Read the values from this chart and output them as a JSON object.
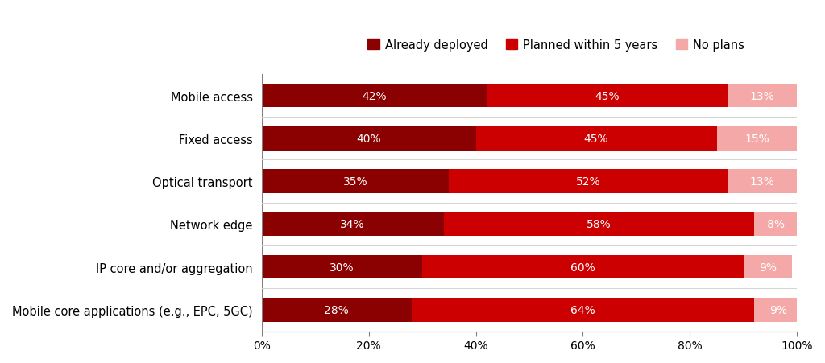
{
  "categories": [
    "Mobile access",
    "Fixed access",
    "Optical transport",
    "Network edge",
    "IP core and/or aggregation",
    "Mobile core applications (e.g., EPC, 5GC)"
  ],
  "already_deployed": [
    42,
    40,
    35,
    34,
    30,
    28
  ],
  "planned_within_5years": [
    45,
    45,
    52,
    58,
    60,
    64
  ],
  "no_plans": [
    13,
    15,
    13,
    8,
    9,
    9
  ],
  "color_deployed": "#8B0000",
  "color_planned": "#CC0000",
  "color_no_plans": "#F4A9A8",
  "legend_labels": [
    "Already deployed",
    "Planned within 5 years",
    "No plans"
  ],
  "bar_height": 0.55,
  "background_color": "#FFFFFF",
  "label_fontsize": 10.5,
  "tick_fontsize": 10,
  "legend_fontsize": 10.5,
  "bar_label_fontsize": 10,
  "bar_label_color": "#FFFFFF"
}
